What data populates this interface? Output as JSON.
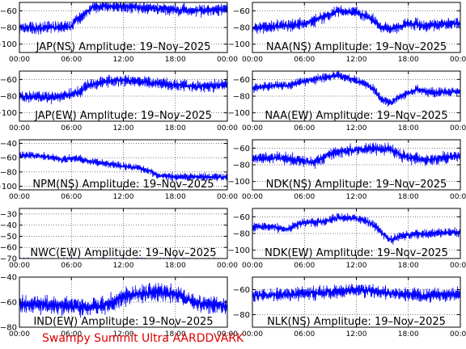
{
  "footer": "Swampy Summit Ultra AARDDVARK",
  "chart_data": [
    {
      "type": "line",
      "title": "JAP(NS) Amplitude: 19–Nov–2025",
      "color": "#0000ff",
      "x_ticks": [
        "00:00",
        "06:00",
        "12:00",
        "18:00",
        "00:00"
      ],
      "yticks": [
        -60,
        -80,
        -100
      ],
      "ylim": [
        -110,
        -50
      ],
      "series": [
        {
          "values": [
            [
              0,
              -80
            ],
            [
              2,
              -81
            ],
            [
              4,
              -80
            ],
            [
              6,
              -79
            ],
            [
              6.5,
              -70
            ],
            [
              7.5,
              -65
            ],
            [
              8.5,
              -55
            ],
            [
              12,
              -55
            ],
            [
              15,
              -57
            ],
            [
              17,
              -58
            ],
            [
              20,
              -60
            ],
            [
              22,
              -60
            ],
            [
              24,
              -58
            ]
          ]
        }
      ],
      "noise": 4
    },
    {
      "type": "line",
      "title": "NAA(NS) Amplitude: 19–Nov–2025",
      "color": "#0000ff",
      "x_ticks": [
        "00:00",
        "06:00",
        "12:00",
        "18:00",
        "00:00"
      ],
      "yticks": [
        -60,
        -80,
        -100
      ],
      "ylim": [
        -110,
        -50
      ],
      "series": [
        {
          "values": [
            [
              0,
              -80
            ],
            [
              3,
              -79
            ],
            [
              6,
              -75
            ],
            [
              8,
              -68
            ],
            [
              10,
              -60
            ],
            [
              12,
              -62
            ],
            [
              13,
              -66
            ],
            [
              14,
              -72
            ],
            [
              15,
              -80
            ],
            [
              16,
              -82
            ],
            [
              18,
              -75
            ],
            [
              20,
              -78
            ],
            [
              22,
              -76
            ],
            [
              24,
              -75
            ]
          ]
        }
      ],
      "noise": 4
    },
    {
      "type": "line",
      "title": "JAP(EW) Amplitude: 19–Nov–2025",
      "color": "#0000ff",
      "x_ticks": [
        "00:00",
        "06:00",
        "12:00",
        "18:00",
        "00:00"
      ],
      "yticks": [
        -60,
        -80,
        -100
      ],
      "ylim": [
        -110,
        -50
      ],
      "series": [
        {
          "values": [
            [
              0,
              -80
            ],
            [
              3,
              -82
            ],
            [
              5,
              -80
            ],
            [
              7,
              -75
            ],
            [
              8,
              -67
            ],
            [
              10,
              -62
            ],
            [
              12,
              -61
            ],
            [
              14,
              -63
            ],
            [
              16,
              -65
            ],
            [
              18,
              -67
            ],
            [
              20,
              -68
            ],
            [
              22,
              -68
            ],
            [
              24,
              -66
            ]
          ]
        }
      ],
      "noise": 4
    },
    {
      "type": "line",
      "title": "NAA(EW) Amplitude: 19–Nov–2025",
      "color": "#0000ff",
      "x_ticks": [
        "00:00",
        "06:00",
        "12:00",
        "18:00",
        "00:00"
      ],
      "yticks": [
        -60,
        -80,
        -100
      ],
      "ylim": [
        -110,
        -50
      ],
      "series": [
        {
          "values": [
            [
              0,
              -70
            ],
            [
              2,
              -68
            ],
            [
              4,
              -67
            ],
            [
              6,
              -62
            ],
            [
              8,
              -58
            ],
            [
              10,
              -55
            ],
            [
              11,
              -58
            ],
            [
              13,
              -65
            ],
            [
              14,
              -72
            ],
            [
              15,
              -85
            ],
            [
              16,
              -88
            ],
            [
              17,
              -80
            ],
            [
              19,
              -72
            ],
            [
              21,
              -76
            ],
            [
              24,
              -74
            ]
          ]
        }
      ],
      "noise": 3
    },
    {
      "type": "line",
      "title": "NPM(NS) Amplitude: 19–Nov–2025",
      "color": "#0000ff",
      "x_ticks": [
        "00:00",
        "06:00",
        "12:00",
        "18:00",
        "00:00"
      ],
      "yticks": [
        -40,
        -60,
        -80,
        -100
      ],
      "ylim": [
        -105,
        -35
      ],
      "series": [
        {
          "values": [
            [
              0,
              -57
            ],
            [
              2,
              -57
            ],
            [
              4,
              -60
            ],
            [
              5,
              -63
            ],
            [
              6,
              -61
            ],
            [
              7,
              -62
            ],
            [
              8,
              -65
            ],
            [
              10,
              -68
            ],
            [
              12,
              -72
            ],
            [
              14,
              -75
            ],
            [
              15,
              -78
            ],
            [
              16,
              -85
            ],
            [
              18,
              -87
            ],
            [
              20,
              -87
            ],
            [
              24,
              -87
            ]
          ]
        }
      ],
      "noise": 3
    },
    {
      "type": "line",
      "title": "NDK(NS) Amplitude: 19–Nov–2025",
      "color": "#0000ff",
      "x_ticks": [
        "00:00",
        "06:00",
        "12:00",
        "18:00",
        "00:00"
      ],
      "yticks": [
        -60,
        -80,
        -100
      ],
      "ylim": [
        -110,
        -50
      ],
      "series": [
        {
          "values": [
            [
              0,
              -72
            ],
            [
              3,
              -72
            ],
            [
              5,
              -74
            ],
            [
              7,
              -77
            ],
            [
              8,
              -73
            ],
            [
              9,
              -66
            ],
            [
              11,
              -63
            ],
            [
              14,
              -61
            ],
            [
              16,
              -62
            ],
            [
              17,
              -68
            ],
            [
              18,
              -72
            ],
            [
              20,
              -74
            ],
            [
              22,
              -72
            ],
            [
              24,
              -69
            ]
          ]
        }
      ],
      "noise": 4
    },
    {
      "type": "line",
      "title": "NWC(EW) Amplitude: 19–Nov–2025",
      "color": "#0000ff",
      "x_ticks": [
        "00:00",
        "06:00",
        "12:00",
        "18:00",
        "00:00"
      ],
      "yticks": [
        -30,
        -40,
        -50,
        -60,
        -70
      ],
      "ylim": [
        -70,
        -25
      ],
      "series": [
        {
          "values": [
            [
              0,
              -71
            ],
            [
              6,
              -71
            ],
            [
              12,
              -71
            ],
            [
              18,
              -71
            ],
            [
              24,
              -71
            ]
          ]
        }
      ],
      "noise": 1
    },
    {
      "type": "line",
      "title": "NDK(EW) Amplitude: 19–Nov–2025",
      "color": "#0000ff",
      "x_ticks": [
        "00:00",
        "06:00",
        "12:00",
        "18:00",
        "00:00"
      ],
      "yticks": [
        -60,
        -80,
        -100
      ],
      "ylim": [
        -110,
        -50
      ],
      "series": [
        {
          "values": [
            [
              0,
              -72
            ],
            [
              2,
              -72
            ],
            [
              4,
              -75
            ],
            [
              5,
              -70
            ],
            [
              6,
              -67
            ],
            [
              8,
              -66
            ],
            [
              10,
              -61
            ],
            [
              12,
              -62
            ],
            [
              13,
              -65
            ],
            [
              14,
              -70
            ],
            [
              15,
              -80
            ],
            [
              16,
              -88
            ],
            [
              17,
              -83
            ],
            [
              19,
              -81
            ],
            [
              21,
              -80
            ],
            [
              24,
              -78
            ]
          ]
        }
      ],
      "noise": 3
    },
    {
      "type": "line",
      "title": "IND(EW) Amplitude: 19–Nov–2025",
      "color": "#0000ff",
      "x_ticks": [
        "00:00",
        "06:00",
        "12:00",
        "18:00",
        "00:00"
      ],
      "yticks": [
        -40,
        -60,
        -80
      ],
      "ylim": [
        -80,
        -40
      ],
      "series": [
        {
          "values": [
            [
              0,
              -62
            ],
            [
              3,
              -62
            ],
            [
              6,
              -63
            ],
            [
              8,
              -65
            ],
            [
              10,
              -62
            ],
            [
              12,
              -56
            ],
            [
              14,
              -53
            ],
            [
              16,
              -52
            ],
            [
              18,
              -54
            ],
            [
              20,
              -60
            ],
            [
              22,
              -62
            ],
            [
              24,
              -63
            ]
          ]
        }
      ],
      "noise": 4
    },
    {
      "type": "line",
      "title": "NLK(NS) Amplitude: 19–Nov–2025",
      "color": "#0000ff",
      "x_ticks": [
        "00:00",
        "06:00",
        "12:00",
        "18:00",
        "00:00"
      ],
      "yticks": [
        -60,
        -80
      ],
      "ylim": [
        -90,
        -50
      ],
      "series": [
        {
          "values": [
            [
              0,
              -65
            ],
            [
              3,
              -64
            ],
            [
              6,
              -63
            ],
            [
              9,
              -62
            ],
            [
              12,
              -60
            ],
            [
              14,
              -61
            ],
            [
              16,
              -63
            ],
            [
              18,
              -64
            ],
            [
              20,
              -65
            ],
            [
              22,
              -64
            ],
            [
              24,
              -63
            ]
          ]
        }
      ],
      "noise": 3
    }
  ]
}
